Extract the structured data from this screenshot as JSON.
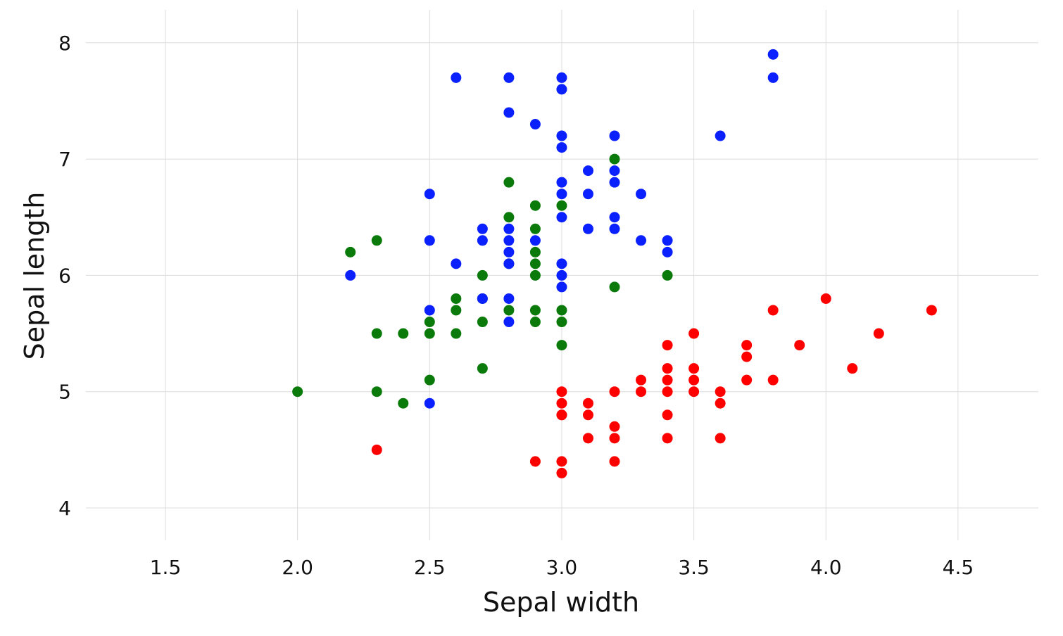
{
  "chart_data": {
    "type": "scatter",
    "title": "",
    "xlabel": "Sepal width",
    "ylabel": "Sepal length",
    "xlim": [
      1.2,
      4.8
    ],
    "ylim": [
      3.8,
      8.3
    ],
    "xticks": [
      1.5,
      2.0,
      2.5,
      3.0,
      3.5,
      4.0,
      4.5
    ],
    "xtick_labels": [
      "1.5",
      "2.0",
      "2.5",
      "3.0",
      "3.5",
      "4.0",
      "4.5"
    ],
    "yticks": [
      4,
      5,
      6,
      7,
      8
    ],
    "ytick_labels": [
      "4",
      "5",
      "6",
      "7",
      "8"
    ],
    "grid": true,
    "legend": "none",
    "series": [
      {
        "color": "#ff0000",
        "points": [
          [
            2.3,
            4.5
          ],
          [
            2.9,
            4.4
          ],
          [
            3.0,
            4.4
          ],
          [
            3.0,
            4.3
          ],
          [
            3.0,
            4.8
          ],
          [
            3.0,
            4.8
          ],
          [
            3.0,
            4.9
          ],
          [
            3.0,
            5.0
          ],
          [
            3.1,
            4.9
          ],
          [
            3.1,
            4.8
          ],
          [
            3.1,
            4.6
          ],
          [
            3.2,
            4.7
          ],
          [
            3.2,
            4.6
          ],
          [
            3.2,
            4.4
          ],
          [
            3.2,
            5.0
          ],
          [
            3.3,
            5.1
          ],
          [
            3.3,
            5.0
          ],
          [
            3.4,
            5.4
          ],
          [
            3.4,
            5.2
          ],
          [
            3.4,
            5.1
          ],
          [
            3.4,
            5.0
          ],
          [
            3.4,
            4.8
          ],
          [
            3.4,
            4.6
          ],
          [
            3.5,
            5.5
          ],
          [
            3.5,
            5.2
          ],
          [
            3.5,
            5.1
          ],
          [
            3.5,
            5.0
          ],
          [
            3.6,
            5.0
          ],
          [
            3.6,
            4.9
          ],
          [
            3.6,
            4.6
          ],
          [
            3.7,
            5.4
          ],
          [
            3.7,
            5.3
          ],
          [
            3.7,
            5.1
          ],
          [
            3.8,
            5.7
          ],
          [
            3.8,
            5.1
          ],
          [
            3.9,
            5.4
          ],
          [
            4.0,
            5.8
          ],
          [
            4.1,
            5.2
          ],
          [
            4.2,
            5.5
          ],
          [
            4.4,
            5.7
          ]
        ]
      },
      {
        "color": "#0a7a0a",
        "points": [
          [
            2.0,
            5.0
          ],
          [
            2.2,
            6.2
          ],
          [
            2.3,
            6.3
          ],
          [
            2.3,
            5.5
          ],
          [
            2.3,
            5.0
          ],
          [
            2.4,
            5.5
          ],
          [
            2.4,
            4.9
          ],
          [
            2.5,
            5.6
          ],
          [
            2.5,
            5.5
          ],
          [
            2.5,
            5.1
          ],
          [
            2.6,
            5.8
          ],
          [
            2.6,
            5.7
          ],
          [
            2.6,
            5.5
          ],
          [
            2.7,
            6.0
          ],
          [
            2.7,
            5.8
          ],
          [
            2.7,
            5.6
          ],
          [
            2.7,
            5.2
          ],
          [
            2.8,
            6.8
          ],
          [
            2.8,
            6.5
          ],
          [
            2.8,
            6.1
          ],
          [
            2.8,
            5.7
          ],
          [
            2.9,
            6.6
          ],
          [
            2.9,
            6.4
          ],
          [
            2.9,
            6.2
          ],
          [
            2.9,
            6.1
          ],
          [
            2.9,
            6.0
          ],
          [
            2.9,
            5.7
          ],
          [
            2.9,
            5.6
          ],
          [
            3.0,
            6.6
          ],
          [
            3.0,
            5.7
          ],
          [
            3.0,
            5.6
          ],
          [
            3.0,
            5.4
          ],
          [
            3.2,
            7.0
          ],
          [
            3.2,
            5.9
          ],
          [
            3.4,
            6.0
          ]
        ]
      },
      {
        "color": "#0a20ff",
        "points": [
          [
            2.2,
            6.0
          ],
          [
            2.5,
            6.7
          ],
          [
            2.5,
            6.3
          ],
          [
            2.5,
            5.7
          ],
          [
            2.5,
            4.9
          ],
          [
            2.6,
            7.7
          ],
          [
            2.6,
            6.1
          ],
          [
            2.7,
            6.4
          ],
          [
            2.7,
            6.3
          ],
          [
            2.7,
            5.8
          ],
          [
            2.8,
            7.7
          ],
          [
            2.8,
            7.4
          ],
          [
            2.8,
            6.4
          ],
          [
            2.8,
            6.3
          ],
          [
            2.8,
            6.2
          ],
          [
            2.8,
            6.1
          ],
          [
            2.8,
            5.8
          ],
          [
            2.8,
            5.6
          ],
          [
            2.9,
            7.3
          ],
          [
            2.9,
            6.3
          ],
          [
            3.0,
            7.7
          ],
          [
            3.0,
            7.6
          ],
          [
            3.0,
            7.2
          ],
          [
            3.0,
            7.1
          ],
          [
            3.0,
            6.8
          ],
          [
            3.0,
            6.7
          ],
          [
            3.0,
            6.5
          ],
          [
            3.0,
            6.1
          ],
          [
            3.0,
            6.0
          ],
          [
            3.0,
            5.9
          ],
          [
            3.1,
            6.9
          ],
          [
            3.1,
            6.7
          ],
          [
            3.1,
            6.4
          ],
          [
            3.2,
            7.2
          ],
          [
            3.2,
            6.9
          ],
          [
            3.2,
            6.8
          ],
          [
            3.2,
            6.5
          ],
          [
            3.2,
            6.4
          ],
          [
            3.3,
            6.7
          ],
          [
            3.3,
            6.3
          ],
          [
            3.4,
            6.3
          ],
          [
            3.4,
            6.2
          ],
          [
            3.6,
            7.2
          ],
          [
            3.8,
            7.9
          ],
          [
            3.8,
            7.7
          ]
        ]
      }
    ]
  }
}
